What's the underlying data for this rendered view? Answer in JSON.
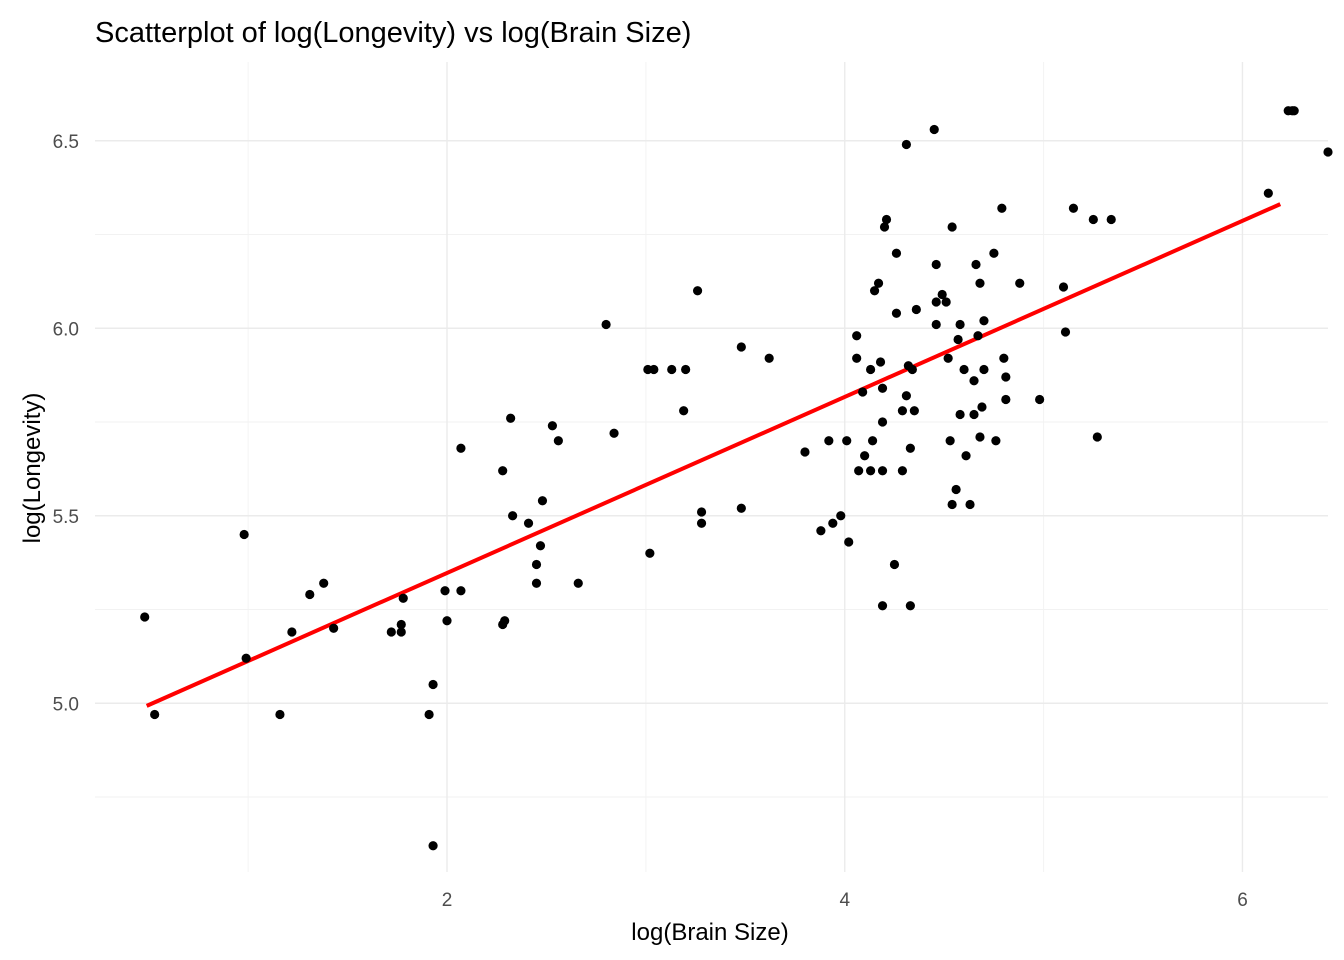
{
  "chart_data": {
    "type": "scatter",
    "title": "Scatterplot of log(Longevity) vs log(Brain Size)",
    "xlabel": "log(Brain Size)",
    "ylabel": "log(Longevity)",
    "xlim": [
      0.23,
      6.43
    ],
    "ylim": [
      4.55,
      6.71
    ],
    "x_ticks": [
      2,
      4,
      6
    ],
    "x_tick_labels": [
      "2",
      "4",
      "6"
    ],
    "x_minor_ticks": [
      1,
      3,
      5
    ],
    "y_ticks": [
      5.0,
      5.5,
      6.0,
      6.5
    ],
    "y_tick_labels": [
      "5.0",
      "5.5",
      "6.0",
      "6.5"
    ],
    "y_minor_ticks": [
      4.75,
      5.25,
      5.75,
      6.25
    ],
    "grid": true,
    "legend": "none",
    "point_color": "#000000",
    "fit_line": {
      "type": "linear",
      "x": [
        0.49,
        6.19
      ],
      "y": [
        4.993,
        6.331
      ],
      "color": "#ff0000"
    },
    "series": [
      {
        "points": [
          [
            0.48,
            5.23
          ],
          [
            0.53,
            4.97
          ],
          [
            0.98,
            5.45
          ],
          [
            0.99,
            5.12
          ],
          [
            1.16,
            4.97
          ],
          [
            1.22,
            5.19
          ],
          [
            1.31,
            5.29
          ],
          [
            1.38,
            5.32
          ],
          [
            1.43,
            5.2
          ],
          [
            1.72,
            5.19
          ],
          [
            1.77,
            5.21
          ],
          [
            1.77,
            5.19
          ],
          [
            1.78,
            5.28
          ],
          [
            1.91,
            4.97
          ],
          [
            1.93,
            5.05
          ],
          [
            1.93,
            4.62
          ],
          [
            1.99,
            5.3
          ],
          [
            2.0,
            5.22
          ],
          [
            2.07,
            5.68
          ],
          [
            2.07,
            5.3
          ],
          [
            2.28,
            5.62
          ],
          [
            2.28,
            5.21
          ],
          [
            2.29,
            5.22
          ],
          [
            2.32,
            5.76
          ],
          [
            2.33,
            5.5
          ],
          [
            2.41,
            5.48
          ],
          [
            2.45,
            5.37
          ],
          [
            2.45,
            5.32
          ],
          [
            2.47,
            5.42
          ],
          [
            2.48,
            5.54
          ],
          [
            2.53,
            5.74
          ],
          [
            2.56,
            5.7
          ],
          [
            2.66,
            5.32
          ],
          [
            2.8,
            6.01
          ],
          [
            2.84,
            5.72
          ],
          [
            3.01,
            5.89
          ],
          [
            3.02,
            5.4
          ],
          [
            3.04,
            5.89
          ],
          [
            3.13,
            5.89
          ],
          [
            3.19,
            5.78
          ],
          [
            3.2,
            5.89
          ],
          [
            3.26,
            6.1
          ],
          [
            3.28,
            5.51
          ],
          [
            3.28,
            5.48
          ],
          [
            3.48,
            5.95
          ],
          [
            3.48,
            5.52
          ],
          [
            3.62,
            5.92
          ],
          [
            3.8,
            5.67
          ],
          [
            3.88,
            5.46
          ],
          [
            3.92,
            5.7
          ],
          [
            3.94,
            5.48
          ],
          [
            3.98,
            5.5
          ],
          [
            4.01,
            5.7
          ],
          [
            4.02,
            5.43
          ],
          [
            4.06,
            5.98
          ],
          [
            4.06,
            5.92
          ],
          [
            4.07,
            5.62
          ],
          [
            4.09,
            5.83
          ],
          [
            4.1,
            5.66
          ],
          [
            4.13,
            5.89
          ],
          [
            4.13,
            5.62
          ],
          [
            4.14,
            5.7
          ],
          [
            4.15,
            6.1
          ],
          [
            4.17,
            6.12
          ],
          [
            4.18,
            5.91
          ],
          [
            4.19,
            5.84
          ],
          [
            4.19,
            5.75
          ],
          [
            4.19,
            5.62
          ],
          [
            4.19,
            5.26
          ],
          [
            4.2,
            6.27
          ],
          [
            4.21,
            6.29
          ],
          [
            4.25,
            5.37
          ],
          [
            4.26,
            6.2
          ],
          [
            4.26,
            6.04
          ],
          [
            4.29,
            5.78
          ],
          [
            4.29,
            5.62
          ],
          [
            4.31,
            6.49
          ],
          [
            4.31,
            5.82
          ],
          [
            4.32,
            5.9
          ],
          [
            4.33,
            5.68
          ],
          [
            4.33,
            5.26
          ],
          [
            4.34,
            5.89
          ],
          [
            4.35,
            5.78
          ],
          [
            4.36,
            6.05
          ],
          [
            4.45,
            6.53
          ],
          [
            4.46,
            6.17
          ],
          [
            4.46,
            6.07
          ],
          [
            4.46,
            6.01
          ],
          [
            4.49,
            6.09
          ],
          [
            4.51,
            6.07
          ],
          [
            4.52,
            5.92
          ],
          [
            4.53,
            5.7
          ],
          [
            4.54,
            6.27
          ],
          [
            4.54,
            5.53
          ],
          [
            4.56,
            5.57
          ],
          [
            4.57,
            5.97
          ],
          [
            4.58,
            6.01
          ],
          [
            4.58,
            5.77
          ],
          [
            4.6,
            5.89
          ],
          [
            4.61,
            5.66
          ],
          [
            4.63,
            5.53
          ],
          [
            4.65,
            5.86
          ],
          [
            4.65,
            5.77
          ],
          [
            4.66,
            6.17
          ],
          [
            4.67,
            5.98
          ],
          [
            4.68,
            6.12
          ],
          [
            4.68,
            5.71
          ],
          [
            4.69,
            5.79
          ],
          [
            4.7,
            6.02
          ],
          [
            4.7,
            5.89
          ],
          [
            4.75,
            6.2
          ],
          [
            4.76,
            5.7
          ],
          [
            4.79,
            6.32
          ],
          [
            4.8,
            5.92
          ],
          [
            4.81,
            5.87
          ],
          [
            4.81,
            5.81
          ],
          [
            4.88,
            6.12
          ],
          [
            4.98,
            5.81
          ],
          [
            5.1,
            6.11
          ],
          [
            5.11,
            5.99
          ],
          [
            5.15,
            6.32
          ],
          [
            5.25,
            6.29
          ],
          [
            5.27,
            5.71
          ],
          [
            5.34,
            6.29
          ],
          [
            6.13,
            6.36
          ],
          [
            6.23,
            6.58
          ],
          [
            6.25,
            6.58
          ],
          [
            6.26,
            6.58
          ],
          [
            6.43,
            6.47
          ]
        ]
      }
    ]
  }
}
